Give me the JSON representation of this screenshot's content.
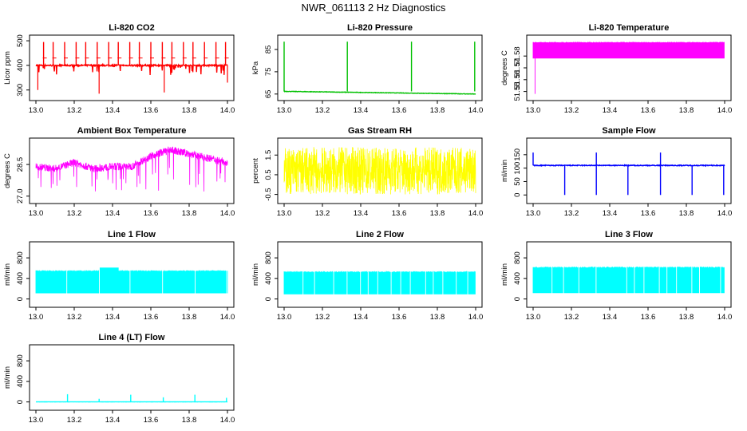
{
  "page_title": "NWR_061113  2 Hz Diagnostics",
  "colors": {
    "red": "#ff0000",
    "green": "#00c000",
    "magenta": "#ff00ff",
    "yellow": "#ffff00",
    "blue": "#0000ff",
    "cyan": "#00ffff"
  },
  "chart_data": [
    {
      "type": "line",
      "title": "Li-820 CO2",
      "ylabel": "Licor ppm",
      "color": "red",
      "xlim": [
        13.0,
        14.0
      ],
      "x_ticks": [
        "13.0",
        "13.2",
        "13.4",
        "13.6",
        "13.8",
        "14.0"
      ],
      "ylim": [
        270,
        510
      ],
      "y_ticks": [
        {
          "v": 300,
          "t": "300"
        },
        {
          "v": 400,
          "t": "400"
        },
        {
          "v": 500,
          "t": "500"
        }
      ],
      "series": [
        {
          "pattern": "baseline_spikes",
          "base": 400,
          "noise": 6,
          "spike_to": 495,
          "spike_x": [
            13.04,
            13.09,
            13.15,
            13.21,
            13.26,
            13.32,
            13.38,
            13.43,
            13.49,
            13.54,
            13.6,
            13.66,
            13.71,
            13.77,
            13.82,
            13.88,
            13.94,
            13.99
          ],
          "dip_to": 360,
          "deep_dips": [
            {
              "x": 13.01,
              "y": 300
            },
            {
              "x": 13.33,
              "y": 285
            },
            {
              "x": 13.67,
              "y": 290
            },
            {
              "x": 14.0,
              "y": 330
            }
          ]
        }
      ]
    },
    {
      "type": "line",
      "title": "Li-820 Pressure",
      "ylabel": "kPa",
      "color": "green",
      "xlim": [
        13.0,
        14.0
      ],
      "x_ticks": [
        "13.0",
        "13.2",
        "13.4",
        "13.6",
        "13.8",
        "14.0"
      ],
      "ylim": [
        63.5,
        90
      ],
      "y_ticks": [
        {
          "v": 65,
          "t": "65"
        },
        {
          "v": 75,
          "t": "75"
        },
        {
          "v": 85,
          "t": "85"
        }
      ],
      "series": [
        {
          "pattern": "baseline_spikes",
          "base": 66.2,
          "drift_to": 65.0,
          "noise": 0.2,
          "spike_to": 88.5,
          "spike_x": [
            13.0,
            13.33,
            13.665,
            13.995
          ]
        }
      ]
    },
    {
      "type": "area",
      "title": "Li-820 Temperature",
      "ylabel": "degrees C",
      "color": "magenta",
      "xlim": [
        13.0,
        14.0
      ],
      "x_ticks": [
        "13.0",
        "13.2",
        "13.4",
        "13.6",
        "13.8",
        "14.0"
      ],
      "ylim": [
        51.545,
        51.595
      ],
      "y_ticks": [
        {
          "v": 51.55,
          "t": "51.55"
        },
        {
          "v": 51.56,
          "t": "51.56"
        },
        {
          "v": 51.57,
          "t": "51.57"
        },
        {
          "v": 51.58,
          "t": "51.58"
        }
      ],
      "series": [
        {
          "pattern": "band",
          "low": 51.578,
          "high": 51.592,
          "dip_x": 13.01,
          "dip_to": 51.548
        }
      ]
    },
    {
      "type": "line",
      "title": "Ambient Box Temperature",
      "ylabel": "degrees C",
      "color": "magenta",
      "xlim": [
        13.0,
        14.0
      ],
      "x_ticks": [
        "13.0",
        "13.2",
        "13.4",
        "13.6",
        "13.8",
        "14.0"
      ],
      "ylim": [
        26.8,
        29.6
      ],
      "y_ticks": [
        {
          "v": 27.0,
          "t": "27.0"
        },
        {
          "v": 28.5,
          "t": "28.5"
        }
      ],
      "series": [
        {
          "pattern": "noisy_trend",
          "trend": [
            [
              13.0,
              28.4
            ],
            [
              13.1,
              28.3
            ],
            [
              13.2,
              28.6
            ],
            [
              13.3,
              28.3
            ],
            [
              13.4,
              28.4
            ],
            [
              13.5,
              28.4
            ],
            [
              13.6,
              28.9
            ],
            [
              13.7,
              29.2
            ],
            [
              13.8,
              29.0
            ],
            [
              13.9,
              28.8
            ],
            [
              14.0,
              28.6
            ]
          ],
          "noise": 0.35,
          "dip_to": 27.2
        }
      ]
    },
    {
      "type": "line",
      "title": "Gas Stream RH",
      "ylabel": "percent",
      "color": "yellow",
      "xlim": [
        13.0,
        14.0
      ],
      "x_ticks": [
        "13.0",
        "13.2",
        "13.4",
        "13.6",
        "13.8",
        "14.0"
      ],
      "ylim": [
        -0.8,
        2.2
      ],
      "y_ticks": [
        {
          "v": -0.5,
          "t": "-0.5"
        },
        {
          "v": 0.5,
          "t": "0.5"
        },
        {
          "v": 1.5,
          "t": "1.5"
        }
      ],
      "series": [
        {
          "pattern": "uniform_noise",
          "low": -0.5,
          "high": 1.9
        }
      ]
    },
    {
      "type": "line",
      "title": "Sample Flow",
      "ylabel": "ml/min",
      "color": "blue",
      "xlim": [
        13.0,
        14.0
      ],
      "x_ticks": [
        "13.0",
        "13.2",
        "13.4",
        "13.6",
        "13.8",
        "14.0"
      ],
      "ylim": [
        -20,
        200
      ],
      "y_ticks": [
        {
          "v": 0,
          "t": "0"
        },
        {
          "v": 50,
          "t": "50"
        },
        {
          "v": 100,
          "t": "100"
        },
        {
          "v": 150,
          "t": "150"
        }
      ],
      "series": [
        {
          "pattern": "baseline_spikes",
          "base": 110,
          "noise": 3,
          "spike_to": 158,
          "spike_x": [
            13.0,
            13.33,
            13.665
          ],
          "dips": [
            13.165,
            13.33,
            13.495,
            13.665,
            13.83,
            13.995
          ],
          "dip_to": 0
        }
      ]
    },
    {
      "type": "area",
      "title": "Line 1 Flow",
      "ylabel": "ml/min",
      "color": "cyan",
      "xlim": [
        13.0,
        14.0
      ],
      "x_ticks": [
        "13.0",
        "13.2",
        "13.4",
        "13.6",
        "13.8",
        "14.0"
      ],
      "ylim": [
        -100,
        1050
      ],
      "y_ticks": [
        {
          "v": 0,
          "t": "0"
        },
        {
          "v": 400,
          "t": "400"
        },
        {
          "v": 800,
          "t": "800"
        }
      ],
      "series": [
        {
          "pattern": "band",
          "low": 110,
          "high": 560,
          "gaps": [
            13.16,
            13.33,
            13.49,
            13.66,
            13.83,
            13.995
          ],
          "bump_x": [
            13.33,
            13.43
          ],
          "bump_high": 610
        }
      ]
    },
    {
      "type": "area",
      "title": "Line 2 Flow",
      "ylabel": "ml/min",
      "color": "cyan",
      "xlim": [
        13.0,
        14.0
      ],
      "x_ticks": [
        "13.0",
        "13.2",
        "13.4",
        "13.6",
        "13.8",
        "14.0"
      ],
      "ylim": [
        -100,
        1050
      ],
      "y_ticks": [
        {
          "v": 0,
          "t": "0"
        },
        {
          "v": 400,
          "t": "400"
        },
        {
          "v": 800,
          "t": "800"
        }
      ],
      "series": [
        {
          "pattern": "band",
          "low": 90,
          "high": 540,
          "gaps": [
            13.1,
            13.16,
            13.26,
            13.33,
            13.4,
            13.44,
            13.49,
            13.56,
            13.61,
            13.66,
            13.74,
            13.78,
            13.83,
            13.9,
            13.96
          ]
        }
      ]
    },
    {
      "type": "area",
      "title": "Line 3 Flow",
      "ylabel": "ml/min",
      "color": "cyan",
      "xlim": [
        13.0,
        14.0
      ],
      "x_ticks": [
        "13.0",
        "13.2",
        "13.4",
        "13.6",
        "13.8",
        "14.0"
      ],
      "ylim": [
        -100,
        1050
      ],
      "y_ticks": [
        {
          "v": 0,
          "t": "0"
        },
        {
          "v": 400,
          "t": "400"
        },
        {
          "v": 800,
          "t": "800"
        }
      ],
      "series": [
        {
          "pattern": "band",
          "low": 115,
          "high": 630,
          "gaps": [
            13.1,
            13.16,
            13.24,
            13.33,
            13.49,
            13.53,
            13.58,
            13.66,
            13.7,
            13.75,
            13.83,
            13.87,
            13.98
          ]
        }
      ]
    },
    {
      "type": "line",
      "title": "Line 4 (LT) Flow",
      "ylabel": "ml/min",
      "color": "cyan",
      "xlim": [
        13.0,
        14.0
      ],
      "x_ticks": [
        "13.0",
        "13.2",
        "13.4",
        "13.6",
        "13.8",
        "14.0"
      ],
      "ylim": [
        -100,
        1050
      ],
      "y_ticks": [
        {
          "v": 0,
          "t": "0"
        },
        {
          "v": 400,
          "t": "400"
        },
        {
          "v": 800,
          "t": "800"
        }
      ],
      "series": [
        {
          "pattern": "baseline_spikes",
          "base": 2,
          "noise": 2,
          "spike_to": 150,
          "spike_x": [
            13.165,
            13.33,
            13.495,
            13.665,
            13.83,
            13.995
          ],
          "spike_heights": [
            150,
            60,
            140,
            90,
            140,
            80
          ]
        }
      ]
    }
  ]
}
